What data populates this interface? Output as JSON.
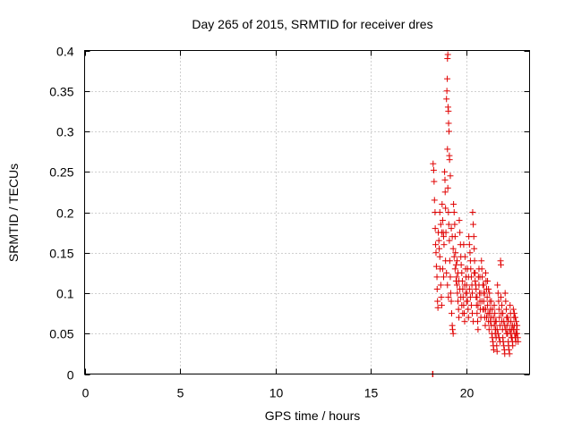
{
  "chart_data": {
    "type": "scatter",
    "title": "Day 265 of 2015, SRMTID for receiver dres",
    "xlabel": "GPS time / hours",
    "ylabel": "SRMTID / TECUs",
    "xlim": [
      0,
      23.3
    ],
    "ylim": [
      0,
      0.4
    ],
    "x_ticks": [
      0,
      5,
      10,
      15,
      20
    ],
    "x_tick_labels": [
      "0",
      "5",
      "10",
      "15",
      "20"
    ],
    "y_ticks": [
      0,
      0.05,
      0.1,
      0.15,
      0.2,
      0.25,
      0.3,
      0.35,
      0.4
    ],
    "y_tick_labels": [
      "0",
      "0.05",
      "0.1",
      "0.15",
      "0.2",
      "0.25",
      "0.3",
      "0.35",
      "0.4"
    ],
    "grid": true,
    "marker": "plus",
    "marker_color": "#e00000",
    "series": [
      {
        "name": "SRMTID",
        "points": [
          [
            18.22,
            0.0
          ],
          [
            18.24,
            0.0
          ],
          [
            18.25,
            0.26
          ],
          [
            18.28,
            0.252
          ],
          [
            18.3,
            0.238
          ],
          [
            18.32,
            0.215
          ],
          [
            18.35,
            0.2
          ],
          [
            18.36,
            0.18
          ],
          [
            18.38,
            0.16
          ],
          [
            18.4,
            0.15
          ],
          [
            18.42,
            0.133
          ],
          [
            18.45,
            0.12
          ],
          [
            18.46,
            0.105
          ],
          [
            18.48,
            0.09
          ],
          [
            18.5,
            0.082
          ],
          [
            18.52,
            0.175
          ],
          [
            18.55,
            0.165
          ],
          [
            18.57,
            0.155
          ],
          [
            18.6,
            0.145
          ],
          [
            18.62,
            0.13
          ],
          [
            18.65,
            0.11
          ],
          [
            18.68,
            0.095
          ],
          [
            18.7,
            0.085
          ],
          [
            18.72,
            0.21
          ],
          [
            18.75,
            0.19
          ],
          [
            18.78,
            0.175
          ],
          [
            18.8,
            0.17
          ],
          [
            18.82,
            0.16
          ],
          [
            18.85,
            0.25
          ],
          [
            18.87,
            0.24
          ],
          [
            18.88,
            0.225
          ],
          [
            18.9,
            0.205
          ],
          [
            18.92,
            0.175
          ],
          [
            18.95,
            0.34
          ],
          [
            18.97,
            0.35
          ],
          [
            18.99,
            0.365
          ],
          [
            19.0,
            0.39
          ],
          [
            19.02,
            0.395
          ],
          [
            19.03,
            0.33
          ],
          [
            19.05,
            0.325
          ],
          [
            19.06,
            0.31
          ],
          [
            19.08,
            0.3
          ],
          [
            19.1,
            0.27
          ],
          [
            19.11,
            0.265
          ],
          [
            19.0,
            0.278
          ],
          [
            19.02,
            0.23
          ],
          [
            19.05,
            0.2
          ],
          [
            19.07,
            0.185
          ],
          [
            19.1,
            0.165
          ],
          [
            19.12,
            0.14
          ],
          [
            19.15,
            0.12
          ],
          [
            19.17,
            0.1
          ],
          [
            19.2,
            0.09
          ],
          [
            19.22,
            0.075
          ],
          [
            19.25,
            0.06
          ],
          [
            19.27,
            0.055
          ],
          [
            19.3,
            0.05
          ],
          [
            19.32,
            0.21
          ],
          [
            19.35,
            0.2
          ],
          [
            19.38,
            0.185
          ],
          [
            19.4,
            0.17
          ],
          [
            19.42,
            0.15
          ],
          [
            19.45,
            0.135
          ],
          [
            19.48,
            0.12
          ],
          [
            19.5,
            0.11
          ],
          [
            19.52,
            0.1
          ],
          [
            19.55,
            0.09
          ],
          [
            19.58,
            0.08
          ],
          [
            19.6,
            0.07
          ],
          [
            19.62,
            0.19
          ],
          [
            19.65,
            0.175
          ],
          [
            19.68,
            0.16
          ],
          [
            19.7,
            0.145
          ],
          [
            19.72,
            0.135
          ],
          [
            19.75,
            0.125
          ],
          [
            19.78,
            0.115
          ],
          [
            19.8,
            0.105
          ],
          [
            19.82,
            0.095
          ],
          [
            19.85,
            0.085
          ],
          [
            19.88,
            0.075
          ],
          [
            19.9,
            0.065
          ],
          [
            19.92,
            0.145
          ],
          [
            19.95,
            0.13
          ],
          [
            19.97,
            0.12
          ],
          [
            20.0,
            0.11
          ],
          [
            20.02,
            0.1
          ],
          [
            20.05,
            0.09
          ],
          [
            20.08,
            0.08
          ],
          [
            20.1,
            0.07
          ],
          [
            20.12,
            0.17
          ],
          [
            20.15,
            0.16
          ],
          [
            20.18,
            0.15
          ],
          [
            20.2,
            0.14
          ],
          [
            20.22,
            0.13
          ],
          [
            20.25,
            0.12
          ],
          [
            20.28,
            0.11
          ],
          [
            20.3,
            0.1
          ],
          [
            20.32,
            0.2
          ],
          [
            20.35,
            0.185
          ],
          [
            20.38,
            0.17
          ],
          [
            20.4,
            0.155
          ],
          [
            20.42,
            0.14
          ],
          [
            20.45,
            0.125
          ],
          [
            20.48,
            0.11
          ],
          [
            20.5,
            0.095
          ],
          [
            20.52,
            0.085
          ],
          [
            20.55,
            0.075
          ],
          [
            20.58,
            0.065
          ],
          [
            20.6,
            0.055
          ],
          [
            20.62,
            0.12
          ],
          [
            20.65,
            0.11
          ],
          [
            20.68,
            0.1
          ],
          [
            20.7,
            0.09
          ],
          [
            20.72,
            0.08
          ],
          [
            20.75,
            0.07
          ],
          [
            20.78,
            0.14
          ],
          [
            20.8,
            0.13
          ],
          [
            20.82,
            0.12
          ],
          [
            20.85,
            0.11
          ],
          [
            20.88,
            0.1
          ],
          [
            20.9,
            0.09
          ],
          [
            20.92,
            0.08
          ],
          [
            20.95,
            0.07
          ],
          [
            20.98,
            0.06
          ],
          [
            21.0,
            0.125
          ],
          [
            21.02,
            0.115
          ],
          [
            21.05,
            0.105
          ],
          [
            21.08,
            0.095
          ],
          [
            21.1,
            0.085
          ],
          [
            21.12,
            0.075
          ],
          [
            21.15,
            0.065
          ],
          [
            21.18,
            0.055
          ],
          [
            21.2,
            0.1
          ],
          [
            21.22,
            0.09
          ],
          [
            21.25,
            0.08
          ],
          [
            21.28,
            0.07
          ],
          [
            21.3,
            0.06
          ],
          [
            21.32,
            0.05
          ],
          [
            21.35,
            0.045
          ],
          [
            21.38,
            0.04
          ],
          [
            21.4,
            0.035
          ],
          [
            21.42,
            0.03
          ],
          [
            21.45,
            0.085
          ],
          [
            21.48,
            0.075
          ],
          [
            21.5,
            0.065
          ],
          [
            21.52,
            0.055
          ],
          [
            21.55,
            0.045
          ],
          [
            21.58,
            0.035
          ],
          [
            21.6,
            0.028
          ],
          [
            21.62,
            0.11
          ],
          [
            21.65,
            0.1
          ],
          [
            21.68,
            0.09
          ],
          [
            21.7,
            0.08
          ],
          [
            21.72,
            0.07
          ],
          [
            21.75,
            0.06
          ],
          [
            21.78,
            0.14
          ],
          [
            21.8,
            0.135
          ],
          [
            21.82,
            0.075
          ],
          [
            21.85,
            0.065
          ],
          [
            21.88,
            0.055
          ],
          [
            21.9,
            0.045
          ],
          [
            21.92,
            0.04
          ],
          [
            21.95,
            0.035
          ],
          [
            21.98,
            0.03
          ],
          [
            22.0,
            0.025
          ],
          [
            22.02,
            0.1
          ],
          [
            22.05,
            0.09
          ],
          [
            22.08,
            0.08
          ],
          [
            22.1,
            0.07
          ],
          [
            22.12,
            0.06
          ],
          [
            22.15,
            0.05
          ],
          [
            22.18,
            0.04
          ],
          [
            22.2,
            0.035
          ],
          [
            22.22,
            0.03
          ],
          [
            22.25,
            0.025
          ],
          [
            22.28,
            0.085
          ],
          [
            22.3,
            0.075
          ],
          [
            22.32,
            0.065
          ],
          [
            22.35,
            0.055
          ],
          [
            22.38,
            0.045
          ],
          [
            22.4,
            0.04
          ],
          [
            22.42,
            0.035
          ],
          [
            22.45,
            0.08
          ],
          [
            22.48,
            0.07
          ],
          [
            22.5,
            0.06
          ],
          [
            22.52,
            0.05
          ],
          [
            22.55,
            0.045
          ],
          [
            22.58,
            0.04
          ],
          [
            22.6,
            0.065
          ],
          [
            22.62,
            0.055
          ],
          [
            22.65,
            0.05
          ],
          [
            22.68,
            0.045
          ],
          [
            22.7,
            0.04
          ],
          [
            18.6,
            0.2
          ],
          [
            18.65,
            0.185
          ],
          [
            18.7,
            0.175
          ],
          [
            18.75,
            0.13
          ],
          [
            18.8,
            0.12
          ],
          [
            18.9,
            0.14
          ],
          [
            18.95,
            0.125
          ],
          [
            19.0,
            0.11
          ],
          [
            19.05,
            0.095
          ],
          [
            19.15,
            0.245
          ],
          [
            19.2,
            0.18
          ],
          [
            19.25,
            0.17
          ],
          [
            19.3,
            0.155
          ],
          [
            19.35,
            0.145
          ],
          [
            19.4,
            0.13
          ],
          [
            19.45,
            0.115
          ],
          [
            19.5,
            0.14
          ],
          [
            19.55,
            0.125
          ],
          [
            19.6,
            0.115
          ],
          [
            19.65,
            0.105
          ],
          [
            19.7,
            0.095
          ],
          [
            19.75,
            0.085
          ],
          [
            19.8,
            0.075
          ],
          [
            19.85,
            0.16
          ],
          [
            19.9,
            0.11
          ],
          [
            19.95,
            0.1
          ],
          [
            20.0,
            0.09
          ],
          [
            20.05,
            0.13
          ],
          [
            20.1,
            0.12
          ],
          [
            20.15,
            0.105
          ],
          [
            20.2,
            0.095
          ],
          [
            20.25,
            0.085
          ],
          [
            20.3,
            0.075
          ],
          [
            20.35,
            0.065
          ],
          [
            20.4,
            0.125
          ],
          [
            20.45,
            0.115
          ],
          [
            20.5,
            0.105
          ],
          [
            20.55,
            0.095
          ],
          [
            20.6,
            0.085
          ],
          [
            20.65,
            0.13
          ],
          [
            20.7,
            0.12
          ],
          [
            20.75,
            0.1
          ],
          [
            20.8,
            0.09
          ],
          [
            20.85,
            0.08
          ],
          [
            20.9,
            0.11
          ],
          [
            20.95,
            0.1
          ],
          [
            21.0,
            0.08
          ],
          [
            21.05,
            0.07
          ],
          [
            21.1,
            0.115
          ],
          [
            21.15,
            0.105
          ],
          [
            21.2,
            0.075
          ],
          [
            21.25,
            0.065
          ],
          [
            21.3,
            0.09
          ],
          [
            21.35,
            0.08
          ],
          [
            21.4,
            0.07
          ],
          [
            21.45,
            0.06
          ],
          [
            21.5,
            0.05
          ],
          [
            21.55,
            0.065
          ],
          [
            21.6,
            0.055
          ],
          [
            21.65,
            0.05
          ],
          [
            21.7,
            0.045
          ],
          [
            21.75,
            0.04
          ],
          [
            21.8,
            0.095
          ],
          [
            21.85,
            0.085
          ],
          [
            21.9,
            0.075
          ],
          [
            21.95,
            0.065
          ],
          [
            22.0,
            0.06
          ],
          [
            22.05,
            0.055
          ],
          [
            22.1,
            0.05
          ],
          [
            22.15,
            0.07
          ],
          [
            22.2,
            0.065
          ],
          [
            22.25,
            0.055
          ],
          [
            22.3,
            0.05
          ],
          [
            22.35,
            0.045
          ],
          [
            22.4,
            0.06
          ],
          [
            22.45,
            0.055
          ],
          [
            22.5,
            0.075
          ],
          [
            22.55,
            0.07
          ],
          [
            22.6,
            0.05
          ],
          [
            22.65,
            0.06
          ]
        ]
      }
    ]
  }
}
